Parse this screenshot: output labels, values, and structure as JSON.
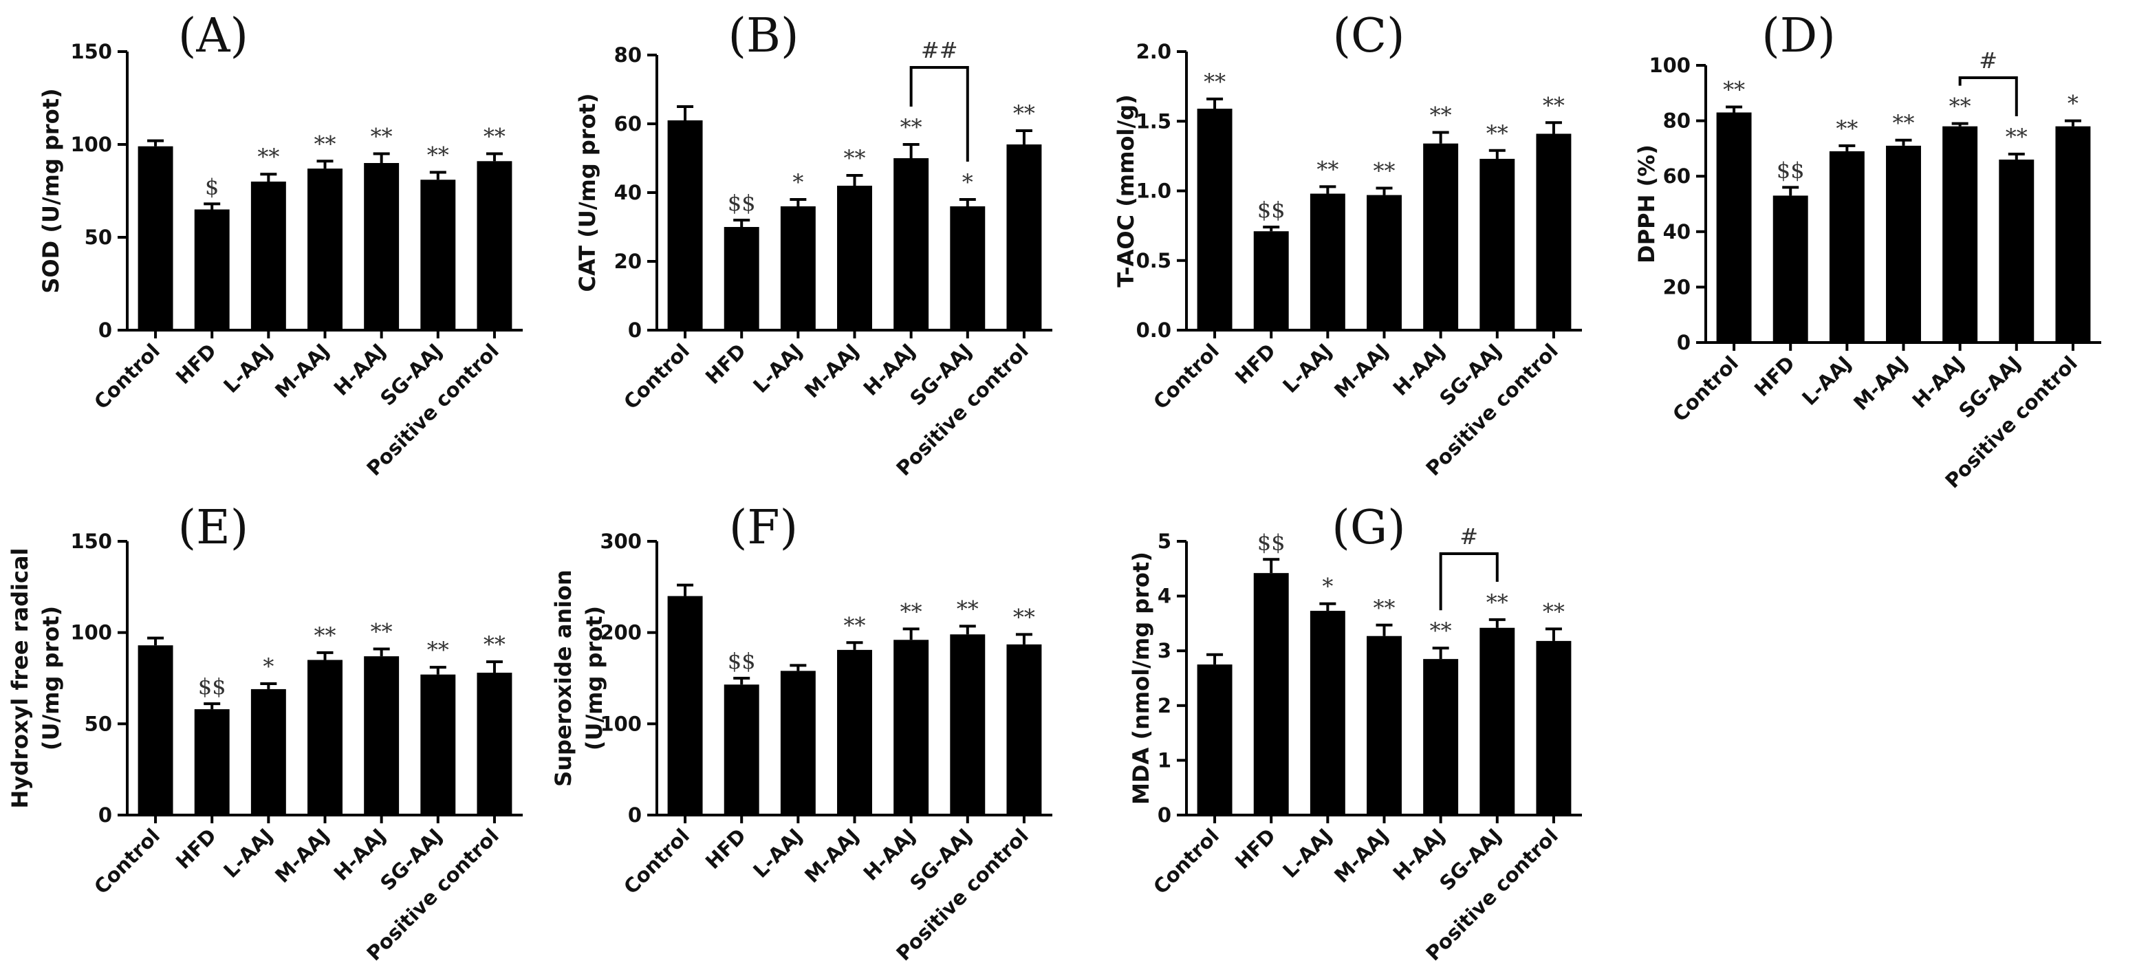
{
  "chart_data": [
    {
      "id": "A",
      "panel_label": "(A)",
      "type": "bar",
      "ylabel": "SOD (U/mg prot)",
      "categories": [
        "Control",
        "HFD",
        "L-AAJ",
        "M-AAJ",
        "H-AAJ",
        "SG-AAJ",
        "Positive control"
      ],
      "values": [
        99,
        65,
        80,
        87,
        90,
        81,
        91
      ],
      "errors": [
        3,
        3,
        4,
        4,
        5,
        4,
        4
      ],
      "ylim": [
        0,
        150
      ],
      "yticks": [
        0,
        50,
        100,
        150
      ],
      "annotations": [
        "",
        "$",
        "**",
        "**",
        "**",
        "**",
        "**"
      ]
    },
    {
      "id": "B",
      "panel_label": "(B)",
      "type": "bar",
      "ylabel": "CAT (U/mg prot)",
      "categories": [
        "Control",
        "HFD",
        "L-AAJ",
        "M-AAJ",
        "H-AAJ",
        "SG-AAJ",
        "Positive control"
      ],
      "values": [
        61,
        30,
        36,
        42,
        50,
        36,
        54
      ],
      "errors": [
        4,
        2,
        2,
        3,
        4,
        2,
        4
      ],
      "ylim": [
        0,
        80
      ],
      "yticks": [
        0,
        20,
        40,
        60,
        80
      ],
      "annotations": [
        "",
        "$$",
        "*",
        "**",
        "**",
        "*",
        "**"
      ],
      "bracket": {
        "from": 4,
        "to": 5,
        "label": "##"
      }
    },
    {
      "id": "C",
      "panel_label": "(C)",
      "type": "bar",
      "ylabel": "T-AOC (mmol/g)",
      "categories": [
        "Control",
        "HFD",
        "L-AAJ",
        "M-AAJ",
        "H-AAJ",
        "SG-AAJ",
        "Positive control"
      ],
      "values": [
        1.59,
        0.71,
        0.98,
        0.97,
        1.34,
        1.23,
        1.41
      ],
      "errors": [
        0.07,
        0.03,
        0.05,
        0.05,
        0.08,
        0.06,
        0.08
      ],
      "ylim": [
        0,
        2.0
      ],
      "yticks": [
        "0.0",
        "0.5",
        "1.0",
        "1.5",
        "2.0"
      ],
      "annotations": [
        "**",
        "$$",
        "**",
        "**",
        "**",
        "**",
        "**"
      ]
    },
    {
      "id": "D",
      "panel_label": "(D)",
      "type": "bar",
      "ylabel": "DPPH (%)",
      "categories": [
        "Control",
        "HFD",
        "L-AAJ",
        "M-AAJ",
        "H-AAJ",
        "SG-AAJ",
        "Positive control"
      ],
      "values": [
        83,
        53,
        69,
        71,
        78,
        66,
        78
      ],
      "errors": [
        2,
        3,
        2,
        2,
        1,
        2,
        2
      ],
      "ylim": [
        0,
        100
      ],
      "yticks": [
        0,
        20,
        40,
        60,
        80,
        100
      ],
      "annotations": [
        "**",
        "$$",
        "**",
        "**",
        "**",
        "**",
        "*"
      ],
      "bracket": {
        "from": 4,
        "to": 5,
        "label": "#"
      }
    },
    {
      "id": "E",
      "panel_label": "(E)",
      "type": "bar",
      "ylabel": "Hydroxyl free radical (U/mg prot)",
      "ylabel_lines": [
        "Hydroxyl free radical",
        "(U/mg prot)"
      ],
      "categories": [
        "Control",
        "HFD",
        "L-AAJ",
        "M-AAJ",
        "H-AAJ",
        "SG-AAJ",
        "Positive control"
      ],
      "values": [
        93,
        58,
        69,
        85,
        87,
        77,
        78
      ],
      "errors": [
        4,
        3,
        3,
        4,
        4,
        4,
        6
      ],
      "ylim": [
        0,
        150
      ],
      "yticks": [
        0,
        50,
        100,
        150
      ],
      "annotations": [
        "",
        "$$",
        "*",
        "**",
        "**",
        "**",
        "**"
      ]
    },
    {
      "id": "F",
      "panel_label": "(F)",
      "type": "bar",
      "ylabel": "Superoxide anion (U/mg prot)",
      "ylabel_lines": [
        "Superoxide anion",
        "(U/mg prot)"
      ],
      "categories": [
        "Control",
        "HFD",
        "L-AAJ",
        "M-AAJ",
        "H-AAJ",
        "SG-AAJ",
        "Positive control"
      ],
      "values": [
        240,
        143,
        158,
        181,
        192,
        198,
        187
      ],
      "errors": [
        12,
        7,
        6,
        8,
        12,
        9,
        11
      ],
      "ylim": [
        0,
        300
      ],
      "yticks": [
        0,
        100,
        200,
        300
      ],
      "annotations": [
        "",
        "$$",
        "",
        "**",
        "**",
        "**",
        "**"
      ]
    },
    {
      "id": "G",
      "panel_label": "(G)",
      "type": "bar",
      "ylabel": "MDA (nmol/mg prot)",
      "categories": [
        "Control",
        "HFD",
        "L-AAJ",
        "M-AAJ",
        "H-AAJ",
        "SG-AAJ",
        "Positive control"
      ],
      "values": [
        2.75,
        4.42,
        3.73,
        3.27,
        2.85,
        3.42,
        3.18
      ],
      "errors": [
        0.18,
        0.25,
        0.13,
        0.2,
        0.2,
        0.15,
        0.22
      ],
      "ylim": [
        0,
        5
      ],
      "yticks": [
        0,
        1,
        2,
        3,
        4,
        5
      ],
      "annotations": [
        "",
        "$$",
        "*",
        "**",
        "**",
        "**",
        "**"
      ],
      "bracket": {
        "from": 4,
        "to": 5,
        "label": "#"
      }
    }
  ]
}
